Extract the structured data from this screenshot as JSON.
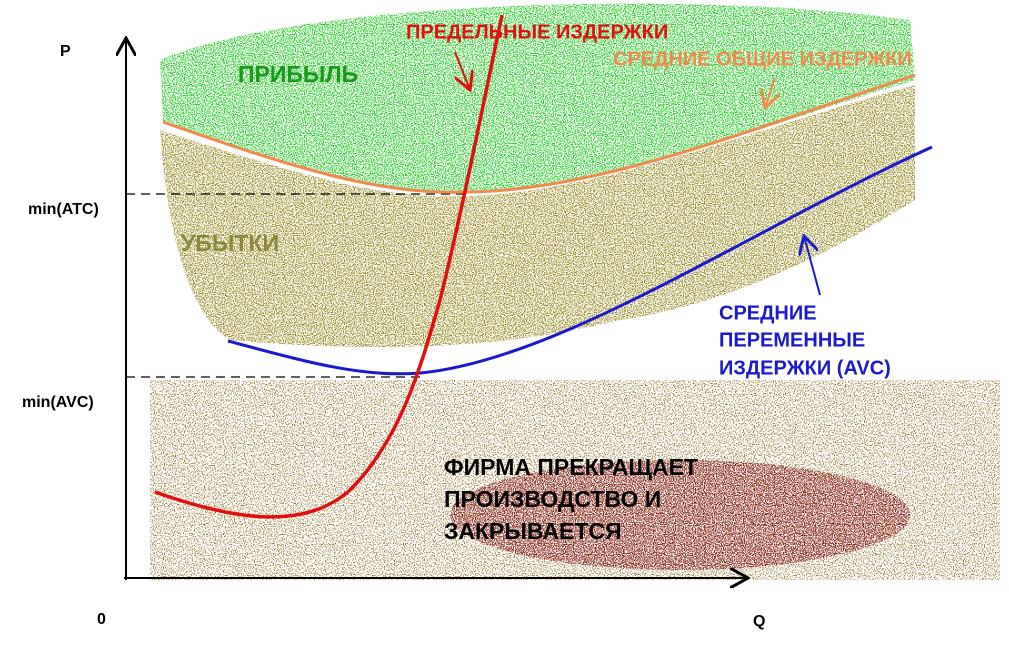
{
  "axes": {
    "y_label": "P",
    "x_label": "Q",
    "origin": "0",
    "min_atc": "min(ATC)",
    "min_avc": "min(AVC)"
  },
  "regions": {
    "profit": "ПРИБЫЛЬ",
    "loss": "УБЫТКИ",
    "shutdown": [
      "ФИРМА ПРЕКРАЩАЕТ",
      "ПРОИЗВОДСТВО И",
      "ЗАКРЫВАЕТСЯ"
    ]
  },
  "curves": {
    "mc": "ПРЕДЕЛЬНЫЕ ИЗДЕРЖКИ",
    "atc": "СРЕДНИЕ ОБЩИЕ ИЗДЕРЖКИ",
    "avc": [
      "СРЕДНИЕ",
      "ПЕРЕМЕННЫЕ",
      "ИЗДЕРЖКИ (AVC)"
    ]
  }
}
